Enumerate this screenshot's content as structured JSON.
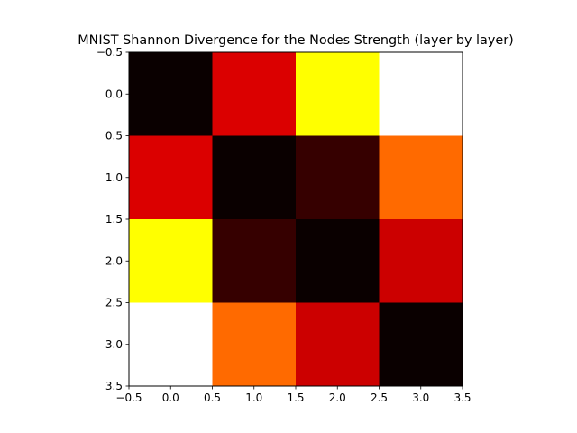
{
  "chart_data": {
    "type": "heatmap",
    "title": "MNIST Shannon Divergence for the Nodes Strength (layer by layer)",
    "xlabel": "",
    "ylabel": "",
    "xlim": [
      -0.5,
      3.5
    ],
    "ylim": [
      3.5,
      -0.5
    ],
    "x_ticks": [
      "−0.5",
      "0.0",
      "0.5",
      "1.0",
      "1.5",
      "2.0",
      "2.5",
      "3.0",
      "3.5"
    ],
    "y_ticks": [
      "−0.5",
      "0.0",
      "0.5",
      "1.0",
      "1.5",
      "2.0",
      "2.5",
      "3.0",
      "3.5"
    ],
    "colormap": "hot",
    "grid": false,
    "legend": "none",
    "values": [
      [
        0.0,
        0.45,
        0.8,
        1.0
      ],
      [
        0.45,
        0.0,
        0.12,
        0.58
      ],
      [
        0.8,
        0.12,
        0.0,
        0.43
      ],
      [
        1.0,
        0.58,
        0.43,
        0.0
      ]
    ],
    "colors": [
      [
        "#0a0000",
        "#db0000",
        "#ffff00",
        "#ffffff"
      ],
      [
        "#db0000",
        "#0a0000",
        "#360000",
        "#ff6a00"
      ],
      [
        "#ffff00",
        "#360000",
        "#0a0000",
        "#cc0000"
      ],
      [
        "#ffffff",
        "#ff6a00",
        "#cc0000",
        "#0a0000"
      ]
    ]
  }
}
